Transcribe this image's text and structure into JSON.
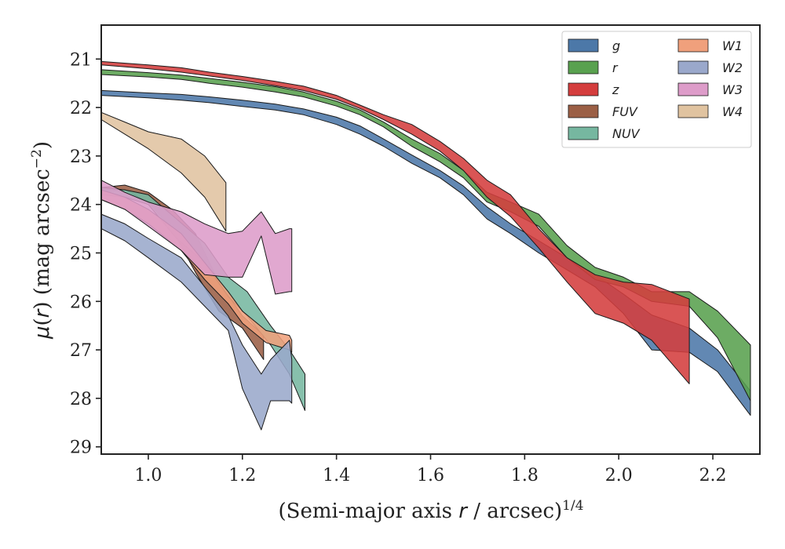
{
  "chart_data": {
    "type": "area",
    "xlabel": "(Semi-major axis r / arcsec)^{1/4}",
    "ylabel": "μ(r) (mag arcsec^{-2})",
    "xlim": [
      0.9,
      2.3
    ],
    "ylim": [
      29.15,
      20.3
    ],
    "x_ticks": [
      "1.0",
      "1.2",
      "1.4",
      "1.6",
      "1.8",
      "2.0",
      "2.2"
    ],
    "y_ticks": [
      "21",
      "22",
      "23",
      "24",
      "25",
      "26",
      "27",
      "28",
      "29"
    ],
    "legend_position": "top-right",
    "series": [
      {
        "name": "g",
        "color": "#4c78a8",
        "x": [
          0.9,
          1.0,
          1.07,
          1.13,
          1.2,
          1.27,
          1.33,
          1.4,
          1.45,
          1.5,
          1.56,
          1.62,
          1.67,
          1.72,
          1.77,
          1.83,
          1.89,
          1.95,
          2.01,
          2.07,
          2.15,
          2.21,
          2.28
        ],
        "lower": [
          21.65,
          21.7,
          21.73,
          21.78,
          21.85,
          21.93,
          22.03,
          22.2,
          22.38,
          22.65,
          22.98,
          23.3,
          23.62,
          24.05,
          24.4,
          24.75,
          25.1,
          25.45,
          25.85,
          26.28,
          26.55,
          27.0,
          27.85
        ],
        "upper": [
          21.75,
          21.8,
          21.85,
          21.9,
          21.98,
          22.05,
          22.15,
          22.35,
          22.55,
          22.8,
          23.15,
          23.45,
          23.8,
          24.3,
          24.6,
          25.0,
          25.35,
          25.7,
          26.25,
          27.0,
          27.05,
          27.45,
          28.35
        ]
      },
      {
        "name": "r",
        "color": "#59a14f",
        "x": [
          0.9,
          1.0,
          1.07,
          1.13,
          1.2,
          1.27,
          1.33,
          1.4,
          1.45,
          1.5,
          1.56,
          1.62,
          1.67,
          1.72,
          1.77,
          1.83,
          1.89,
          1.95,
          2.01,
          2.07,
          2.15,
          2.21,
          2.28
        ],
        "lower": [
          21.22,
          21.28,
          21.33,
          21.4,
          21.48,
          21.57,
          21.68,
          21.87,
          22.05,
          22.3,
          22.65,
          22.95,
          23.3,
          23.75,
          23.95,
          24.2,
          24.85,
          25.3,
          25.5,
          25.8,
          25.8,
          26.2,
          26.9
        ],
        "upper": [
          21.32,
          21.37,
          21.42,
          21.5,
          21.58,
          21.68,
          21.78,
          21.97,
          22.15,
          22.4,
          22.8,
          23.12,
          23.45,
          23.95,
          24.15,
          24.45,
          25.1,
          25.55,
          25.7,
          26.0,
          26.1,
          26.75,
          28.05
        ]
      },
      {
        "name": "z",
        "color": "#d43d3d",
        "x": [
          0.9,
          1.0,
          1.07,
          1.13,
          1.2,
          1.27,
          1.33,
          1.4,
          1.45,
          1.5,
          1.56,
          1.62,
          1.67,
          1.72,
          1.77,
          1.83,
          1.89,
          1.95,
          2.01,
          2.07,
          2.15
        ],
        "lower": [
          21.05,
          21.12,
          21.18,
          21.27,
          21.36,
          21.46,
          21.56,
          21.75,
          21.95,
          22.15,
          22.35,
          22.7,
          23.05,
          23.5,
          23.8,
          24.5,
          25.1,
          25.45,
          25.6,
          25.65,
          25.95
        ],
        "upper": [
          21.12,
          21.2,
          21.27,
          21.35,
          21.44,
          21.55,
          21.65,
          21.83,
          22.02,
          22.25,
          22.55,
          22.9,
          23.3,
          23.85,
          24.25,
          24.9,
          25.6,
          26.25,
          26.45,
          26.8,
          27.7
        ]
      },
      {
        "name": "FUV",
        "color": "#9b5f45",
        "x": [
          0.9,
          0.95,
          1.0,
          1.05,
          1.1,
          1.15,
          1.2,
          1.245
        ],
        "lower": [
          23.65,
          23.6,
          23.75,
          24.1,
          24.6,
          25.6,
          26.3,
          26.7
        ],
        "upper": [
          23.75,
          23.7,
          23.95,
          24.5,
          25.4,
          26.2,
          26.55,
          27.2
        ]
      },
      {
        "name": "NUV",
        "color": "#76b7a0",
        "x": [
          0.9,
          0.95,
          1.0,
          1.06,
          1.12,
          1.17,
          1.21,
          1.26,
          1.3,
          1.333
        ],
        "lower": [
          23.65,
          23.7,
          23.8,
          24.3,
          24.8,
          25.5,
          25.8,
          26.5,
          27.0,
          27.5
        ],
        "upper": [
          23.8,
          23.85,
          24.0,
          24.7,
          25.2,
          25.9,
          26.3,
          26.9,
          27.5,
          28.25
        ]
      },
      {
        "name": "W1",
        "color": "#f0a07c",
        "x": [
          0.9,
          0.95,
          1.0,
          1.07,
          1.12,
          1.17,
          1.2,
          1.25,
          1.3,
          1.305
        ],
        "lower": [
          23.7,
          23.85,
          24.1,
          24.6,
          25.2,
          25.8,
          26.2,
          26.6,
          26.7,
          26.8
        ],
        "upper": [
          23.9,
          24.1,
          24.4,
          24.95,
          25.55,
          26.05,
          26.45,
          26.85,
          27.0,
          27.05
        ]
      },
      {
        "name": "W2",
        "color": "#9aa8cb",
        "x": [
          0.9,
          0.95,
          1.0,
          1.07,
          1.12,
          1.17,
          1.2,
          1.24,
          1.26,
          1.3,
          1.305
        ],
        "lower": [
          24.2,
          24.4,
          24.7,
          25.1,
          25.7,
          26.3,
          26.9,
          27.5,
          27.2,
          26.8,
          27.2
        ],
        "upper": [
          24.5,
          24.75,
          25.1,
          25.6,
          26.1,
          26.6,
          27.8,
          28.65,
          28.05,
          28.05,
          28.1
        ]
      },
      {
        "name": "W3",
        "color": "#dd9cc9",
        "x": [
          0.9,
          0.95,
          1.0,
          1.07,
          1.12,
          1.17,
          1.2,
          1.24,
          1.27,
          1.3,
          1.305
        ],
        "lower": [
          23.5,
          23.75,
          23.95,
          24.15,
          24.4,
          24.6,
          24.55,
          24.15,
          24.6,
          24.5,
          24.5
        ],
        "upper": [
          23.9,
          24.1,
          24.45,
          24.95,
          25.45,
          25.5,
          25.5,
          24.65,
          25.85,
          25.8,
          25.8
        ]
      },
      {
        "name": "W4",
        "color": "#e0c3a0",
        "x": [
          0.9,
          0.95,
          1.0,
          1.07,
          1.12,
          1.165
        ],
        "lower": [
          22.1,
          22.3,
          22.5,
          22.65,
          23.0,
          23.55
        ],
        "upper": [
          22.25,
          22.55,
          22.85,
          23.35,
          23.85,
          24.55
        ]
      }
    ]
  }
}
